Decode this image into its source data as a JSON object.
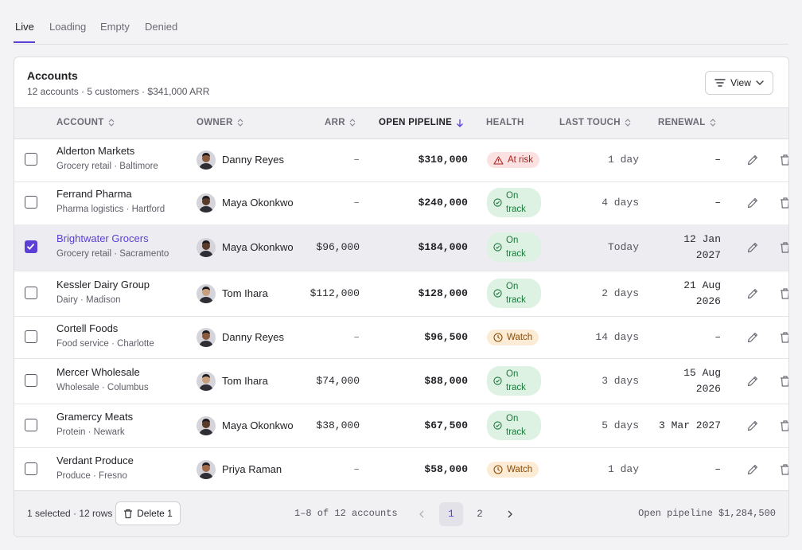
{
  "tabs": [
    {
      "label": "Live",
      "active": true
    },
    {
      "label": "Loading"
    },
    {
      "label": "Empty"
    },
    {
      "label": "Denied"
    }
  ],
  "card": {
    "title": "Accounts",
    "subtitle": "12 accounts · 5 customers · $341,000 ARR",
    "view_label": "View"
  },
  "columns": {
    "account": "ACCOUNT",
    "owner": "OWNER",
    "arr": "ARR",
    "pipeline": "OPEN PIPELINE",
    "health": "HEALTH",
    "last_touch": "LAST TOUCH",
    "renewal": "RENEWAL"
  },
  "rows": [
    {
      "name": "Alderton Markets",
      "sub": "Grocery retail · Baltimore",
      "owner": "Danny Reyes",
      "arr": "–",
      "pipeline": "$310,000",
      "health": "At risk",
      "health_type": "risk",
      "last_touch": "1 day",
      "renewal_1": "–",
      "renewal_2": "",
      "selected": false
    },
    {
      "name": "Ferrand Pharma",
      "sub": "Pharma logistics · Hartford",
      "owner": "Maya Okonkwo",
      "arr": "–",
      "pipeline": "$240,000",
      "health_1": "On",
      "health_2": "track",
      "health_type": "ontrack",
      "last_touch": "4 days",
      "renewal_1": "–",
      "renewal_2": "",
      "selected": false
    },
    {
      "name": "Brightwater Grocers",
      "sub": "Grocery retail · Sacramento",
      "owner": "Maya Okonkwo",
      "arr": "$96,000",
      "pipeline": "$184,000",
      "health_1": "On",
      "health_2": "track",
      "health_type": "ontrack",
      "last_touch": "Today",
      "renewal_1": "12 Jan",
      "renewal_2": "2027",
      "selected": true
    },
    {
      "name": "Kessler Dairy Group",
      "sub": "Dairy · Madison",
      "owner": "Tom Ihara",
      "arr": "$112,000",
      "pipeline": "$128,000",
      "health_1": "On",
      "health_2": "track",
      "health_type": "ontrack",
      "last_touch": "2 days",
      "renewal_1": "21 Aug",
      "renewal_2": "2026",
      "selected": false
    },
    {
      "name": "Cortell Foods",
      "sub": "Food service · Charlotte",
      "owner": "Danny Reyes",
      "arr": "–",
      "pipeline": "$96,500",
      "health": "Watch",
      "health_type": "watch",
      "last_touch": "14 days",
      "renewal_1": "–",
      "renewal_2": "",
      "selected": false
    },
    {
      "name": "Mercer Wholesale",
      "sub": "Wholesale · Columbus",
      "owner": "Tom Ihara",
      "arr": "$74,000",
      "pipeline": "$88,000",
      "health_1": "On",
      "health_2": "track",
      "health_type": "ontrack",
      "last_touch": "3 days",
      "renewal_1": "15 Aug",
      "renewal_2": "2026",
      "selected": false
    },
    {
      "name": "Gramercy Meats",
      "sub": "Protein · Newark",
      "owner": "Maya Okonkwo",
      "arr": "$38,000",
      "pipeline": "$67,500",
      "health_1": "On",
      "health_2": "track",
      "health_type": "ontrack",
      "last_touch": "5 days",
      "renewal_1": "3 Mar 2027",
      "renewal_2": "",
      "selected": false
    },
    {
      "name": "Verdant Produce",
      "sub": "Produce · Fresno",
      "owner": "Priya Raman",
      "arr": "–",
      "pipeline": "$58,000",
      "health": "Watch",
      "health_type": "watch",
      "last_touch": "1 day",
      "renewal_1": "–",
      "renewal_2": "",
      "selected": false
    }
  ],
  "footer": {
    "selection": "1 selected · 12 rows",
    "delete_label": "Delete 1",
    "range": "1–8 of 12 accounts",
    "page_1": "1",
    "page_2": "2",
    "total": "Open pipeline $1,284,500"
  },
  "colors": {
    "accent": "#5b3fd6",
    "risk_bg": "#fbe1e1",
    "watch_bg": "#fcecd5",
    "ontrack_bg": "#ddf2e3"
  }
}
